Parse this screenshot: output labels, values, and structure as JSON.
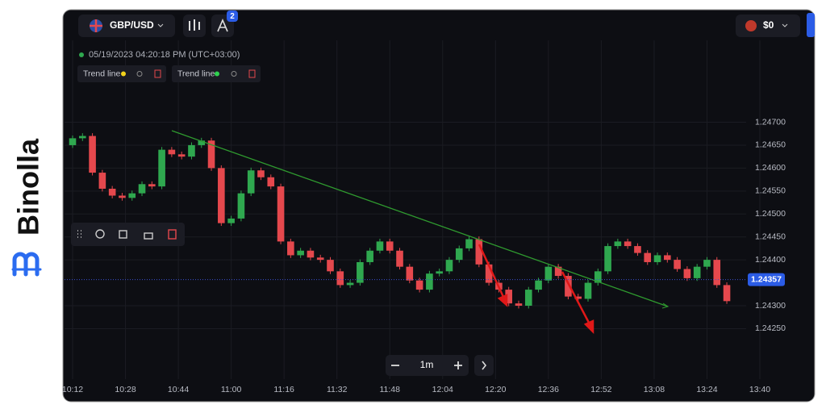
{
  "ui": {
    "brand": "Binolla",
    "pair": "GBP/USD",
    "badge": "2",
    "balance": "$0",
    "timestamp": "05/19/2023 04:20:18 PM (UTC+03:00)",
    "drawings": [
      "Trend line",
      "Trend line"
    ],
    "timeframe": "1m"
  },
  "chart_data": {
    "type": "candlestick",
    "x": [
      "10:12",
      "10:15",
      "10:18",
      "10:21",
      "10:24",
      "10:27",
      "10:30",
      "10:33",
      "10:36",
      "10:39",
      "10:42",
      "10:45",
      "10:48",
      "10:51",
      "10:54",
      "10:57",
      "11:00",
      "11:03",
      "11:06",
      "11:09",
      "11:12",
      "11:15",
      "11:18",
      "11:21",
      "11:24",
      "11:27",
      "11:30",
      "11:33",
      "11:36",
      "11:39",
      "11:42",
      "11:45",
      "11:48",
      "11:51",
      "11:54",
      "11:57",
      "12:00",
      "12:03",
      "12:06",
      "12:09",
      "12:12",
      "12:15",
      "12:18",
      "12:21",
      "12:24",
      "12:27",
      "12:30",
      "12:33",
      "12:36",
      "12:39",
      "12:42",
      "12:45",
      "12:48",
      "12:51",
      "12:54",
      "12:57",
      "13:00",
      "13:03",
      "13:06",
      "13:09",
      "13:12",
      "13:15",
      "13:18",
      "13:21",
      "13:24",
      "13:27",
      "13:30"
    ],
    "open": [
      1.2465,
      1.24665,
      1.2467,
      1.2459,
      1.24555,
      1.2454,
      1.24535,
      1.24545,
      1.24565,
      1.2456,
      1.2464,
      1.2463,
      1.24625,
      1.2465,
      1.2466,
      1.246,
      1.2448,
      1.2449,
      1.24545,
      1.24595,
      1.2458,
      1.2456,
      1.2444,
      1.2441,
      1.2442,
      1.24405,
      1.244,
      1.24375,
      1.24345,
      1.2435,
      1.24395,
      1.2442,
      1.2444,
      1.2442,
      1.24385,
      1.24355,
      1.24335,
      1.2437,
      1.24375,
      1.244,
      1.24425,
      1.24445,
      1.2439,
      1.2435,
      1.24335,
      1.24305,
      1.243,
      1.24335,
      1.24355,
      1.24385,
      1.24365,
      1.2432,
      1.24315,
      1.2435,
      1.24375,
      1.2443,
      1.2444,
      1.2443,
      1.24415,
      1.24395,
      1.2441,
      1.244,
      1.2438,
      1.2436,
      1.24385,
      1.244,
      1.24345
    ],
    "high": [
      1.24671,
      1.24676,
      1.24676,
      1.24596,
      1.24561,
      1.24546,
      1.24551,
      1.24571,
      1.24571,
      1.24646,
      1.24646,
      1.24636,
      1.24656,
      1.24666,
      1.24666,
      1.24606,
      1.24496,
      1.24551,
      1.24601,
      1.24601,
      1.24586,
      1.24566,
      1.24446,
      1.24426,
      1.24426,
      1.24411,
      1.24406,
      1.24381,
      1.24356,
      1.24401,
      1.24426,
      1.24446,
      1.24446,
      1.24426,
      1.24391,
      1.24361,
      1.24376,
      1.24381,
      1.24406,
      1.24431,
      1.24451,
      1.24451,
      1.24396,
      1.24356,
      1.24341,
      1.24311,
      1.24341,
      1.24361,
      1.24391,
      1.24391,
      1.24371,
      1.24326,
      1.24356,
      1.24381,
      1.24436,
      1.24446,
      1.24446,
      1.24436,
      1.24421,
      1.24416,
      1.24416,
      1.24406,
      1.24386,
      1.24391,
      1.24406,
      1.24406,
      1.24351
    ],
    "low": [
      1.24644,
      1.24659,
      1.24584,
      1.24549,
      1.24534,
      1.24529,
      1.24529,
      1.24539,
      1.24554,
      1.24554,
      1.24624,
      1.24619,
      1.24619,
      1.24644,
      1.24594,
      1.24474,
      1.24474,
      1.24484,
      1.24539,
      1.24574,
      1.24554,
      1.24434,
      1.24404,
      1.24404,
      1.24399,
      1.24394,
      1.24369,
      1.24339,
      1.24339,
      1.24344,
      1.24389,
      1.24414,
      1.24414,
      1.24379,
      1.24349,
      1.24329,
      1.24329,
      1.24364,
      1.24369,
      1.24394,
      1.24419,
      1.24384,
      1.24344,
      1.24329,
      1.24299,
      1.24294,
      1.24294,
      1.24329,
      1.24349,
      1.24359,
      1.24314,
      1.24309,
      1.24309,
      1.24344,
      1.24369,
      1.24424,
      1.24424,
      1.24409,
      1.24389,
      1.24389,
      1.24394,
      1.24374,
      1.24354,
      1.24354,
      1.24379,
      1.24339,
      1.24304
    ],
    "close": [
      1.24665,
      1.2467,
      1.2459,
      1.24555,
      1.2454,
      1.24535,
      1.24545,
      1.24565,
      1.2456,
      1.2464,
      1.2463,
      1.24625,
      1.2465,
      1.2466,
      1.246,
      1.2448,
      1.2449,
      1.24545,
      1.24595,
      1.2458,
      1.2456,
      1.2444,
      1.2441,
      1.2442,
      1.24405,
      1.244,
      1.24375,
      1.24345,
      1.2435,
      1.24395,
      1.2442,
      1.2444,
      1.2442,
      1.24385,
      1.24355,
      1.24335,
      1.2437,
      1.24375,
      1.244,
      1.24425,
      1.24445,
      1.2439,
      1.2435,
      1.24335,
      1.24305,
      1.243,
      1.24335,
      1.24355,
      1.24385,
      1.24365,
      1.2432,
      1.24315,
      1.2435,
      1.24375,
      1.2443,
      1.2444,
      1.2443,
      1.24415,
      1.24395,
      1.2441,
      1.244,
      1.2438,
      1.2436,
      1.24385,
      1.244,
      1.24345,
      1.2431
    ],
    "up_color": "#2fa84f",
    "down_color": "#e5484d",
    "current_price": 1.24357,
    "xticks": [
      "10:12",
      "10:28",
      "10:44",
      "11:00",
      "11:16",
      "11:32",
      "11:48",
      "12:04",
      "12:20",
      "12:36",
      "12:52",
      "13:08",
      "13:24",
      "13:40"
    ],
    "ylim": [
      1.2414,
      1.2494
    ],
    "yticks": [
      {
        "value": 1.247,
        "label": "1.24700"
      },
      {
        "value": 1.2465,
        "label": "1.24650"
      },
      {
        "value": 1.246,
        "label": "1.24600"
      },
      {
        "value": 1.2455,
        "label": "1.24550"
      },
      {
        "value": 1.245,
        "label": "1.24500"
      },
      {
        "value": 1.2445,
        "label": "1.24450"
      },
      {
        "value": 1.244,
        "label": "1.24400"
      },
      {
        "value": 1.243,
        "label": "1.24300"
      },
      {
        "value": 1.2425,
        "label": "1.24250"
      }
    ],
    "grid": true
  }
}
